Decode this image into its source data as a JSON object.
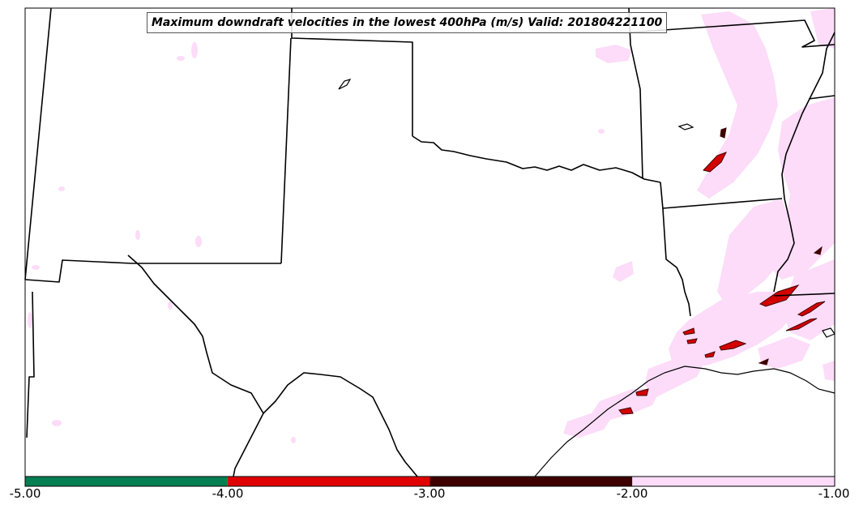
{
  "map": {
    "title": "Maximum downdraft velocities in the lowest 400hPa (m/s) Valid: 201804221100"
  },
  "colorbar": {
    "labels": [
      "-5.00",
      "-4.00",
      "-3.00",
      "-2.00",
      "-1.00"
    ],
    "bins": [
      {
        "from": -5,
        "to": -4,
        "color": "#047f52"
      },
      {
        "from": -4,
        "to": -3,
        "color": "#e00000"
      },
      {
        "from": -3,
        "to": -2,
        "color": "#3f0000"
      },
      {
        "from": -2,
        "to": -1,
        "color": "#fcdcf8"
      }
    ]
  },
  "colors": {
    "light_band": "#fcdcf8",
    "core_red": "#d40000",
    "core_dark": "#3f0000",
    "borders": "#000000"
  }
}
